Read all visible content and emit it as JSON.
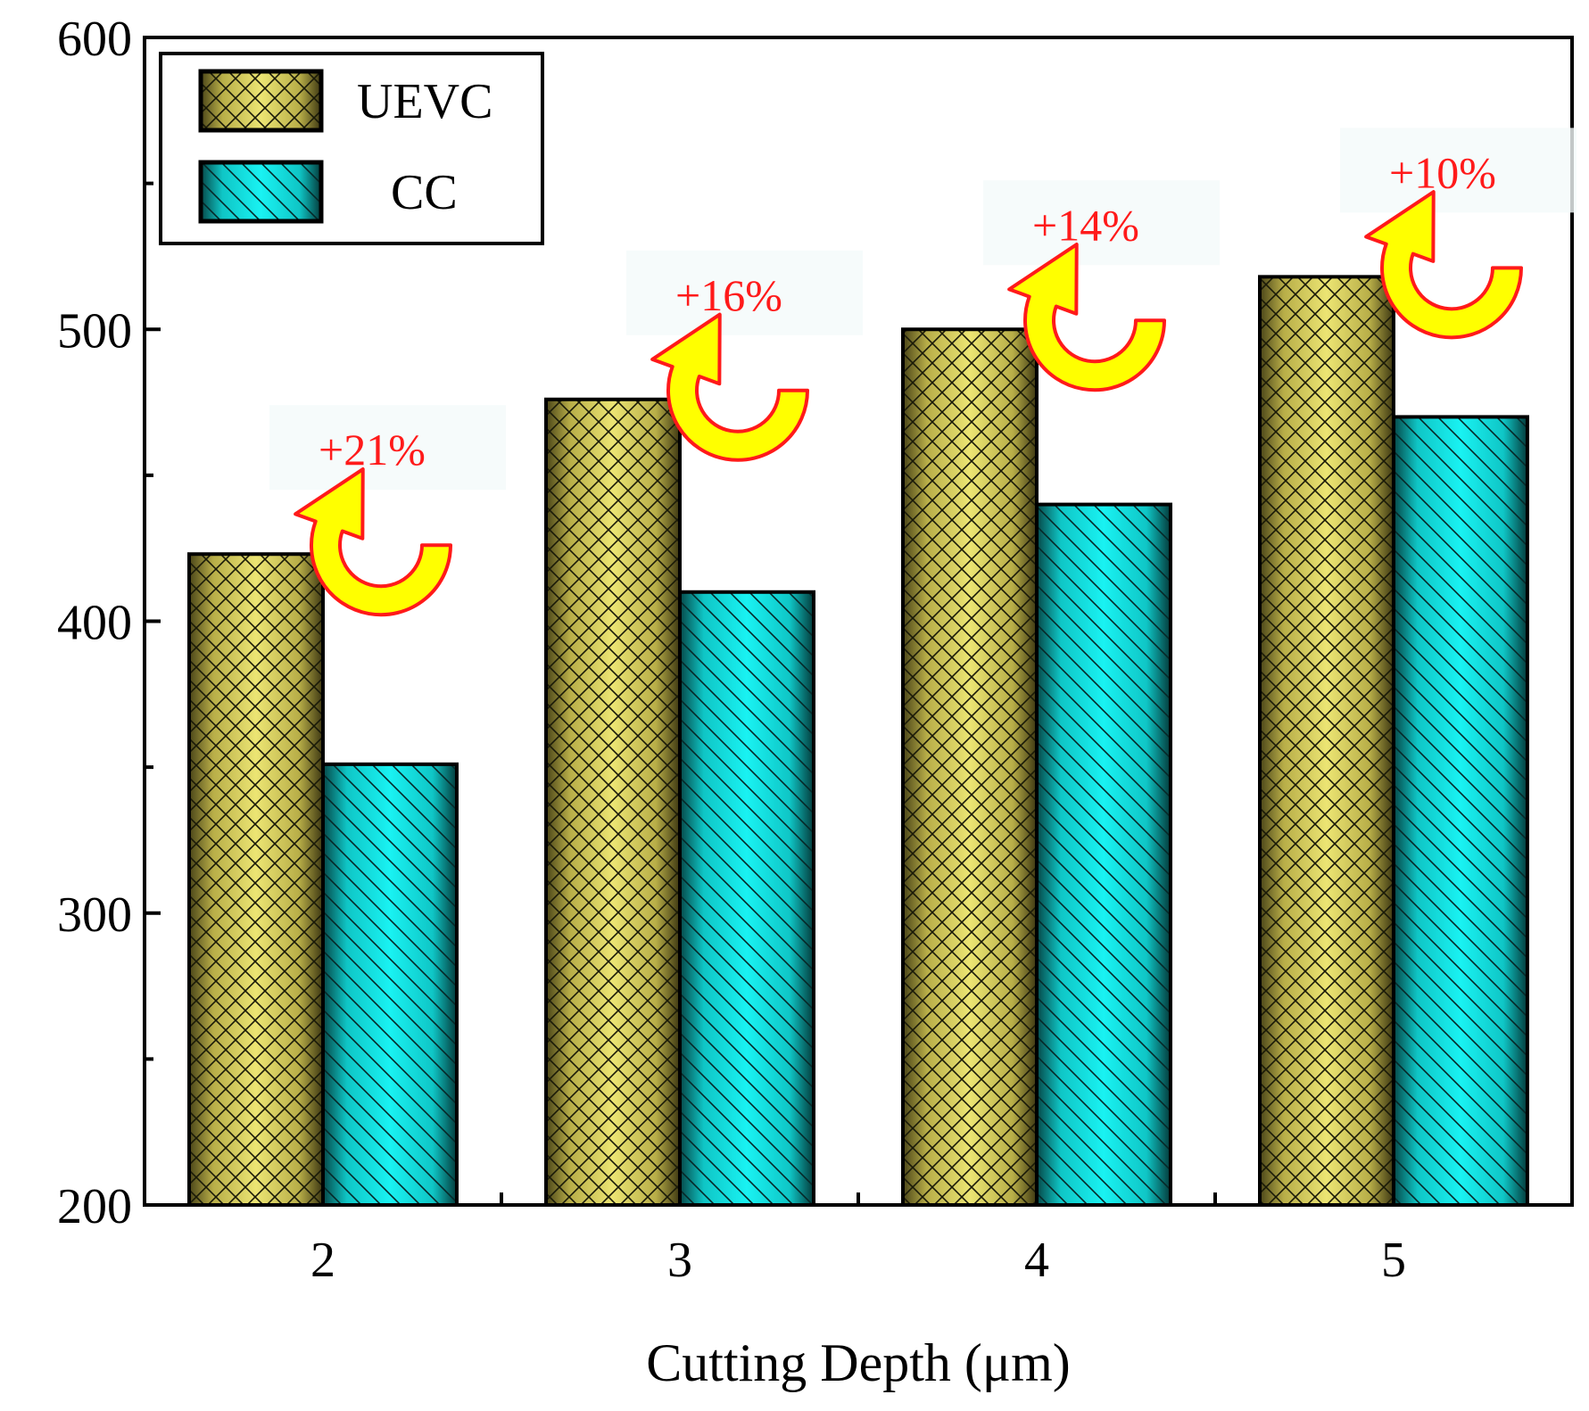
{
  "chart_data": {
    "type": "bar",
    "title": "",
    "xlabel": "Cutting Depth (μm)",
    "ylabel": "",
    "categories": [
      "2",
      "3",
      "4",
      "5"
    ],
    "ylim": [
      200,
      600
    ],
    "yticks": [
      200,
      300,
      400,
      500,
      600
    ],
    "y_tick_labels": [
      "200",
      "300",
      "400",
      "500",
      "600"
    ],
    "grid": false,
    "legend_position": "top-left",
    "series": [
      {
        "name": "UEVC",
        "values": [
          423,
          476,
          500,
          518
        ],
        "color": "#e3dc6f",
        "pattern": "crosshatch"
      },
      {
        "name": "CC",
        "values": [
          351,
          410,
          440,
          470
        ],
        "color": "#13e8e8",
        "pattern": "diagonal"
      }
    ],
    "annotations": [
      {
        "category": "2",
        "text": "+21%"
      },
      {
        "category": "3",
        "text": "+16%"
      },
      {
        "category": "4",
        "text": "+14%"
      },
      {
        "category": "5",
        "text": "+10%"
      }
    ],
    "colors": {
      "annotation_text": "#ff1a1a",
      "arrow_fill": "#ffff00",
      "arrow_stroke": "#ff1a1a"
    }
  }
}
